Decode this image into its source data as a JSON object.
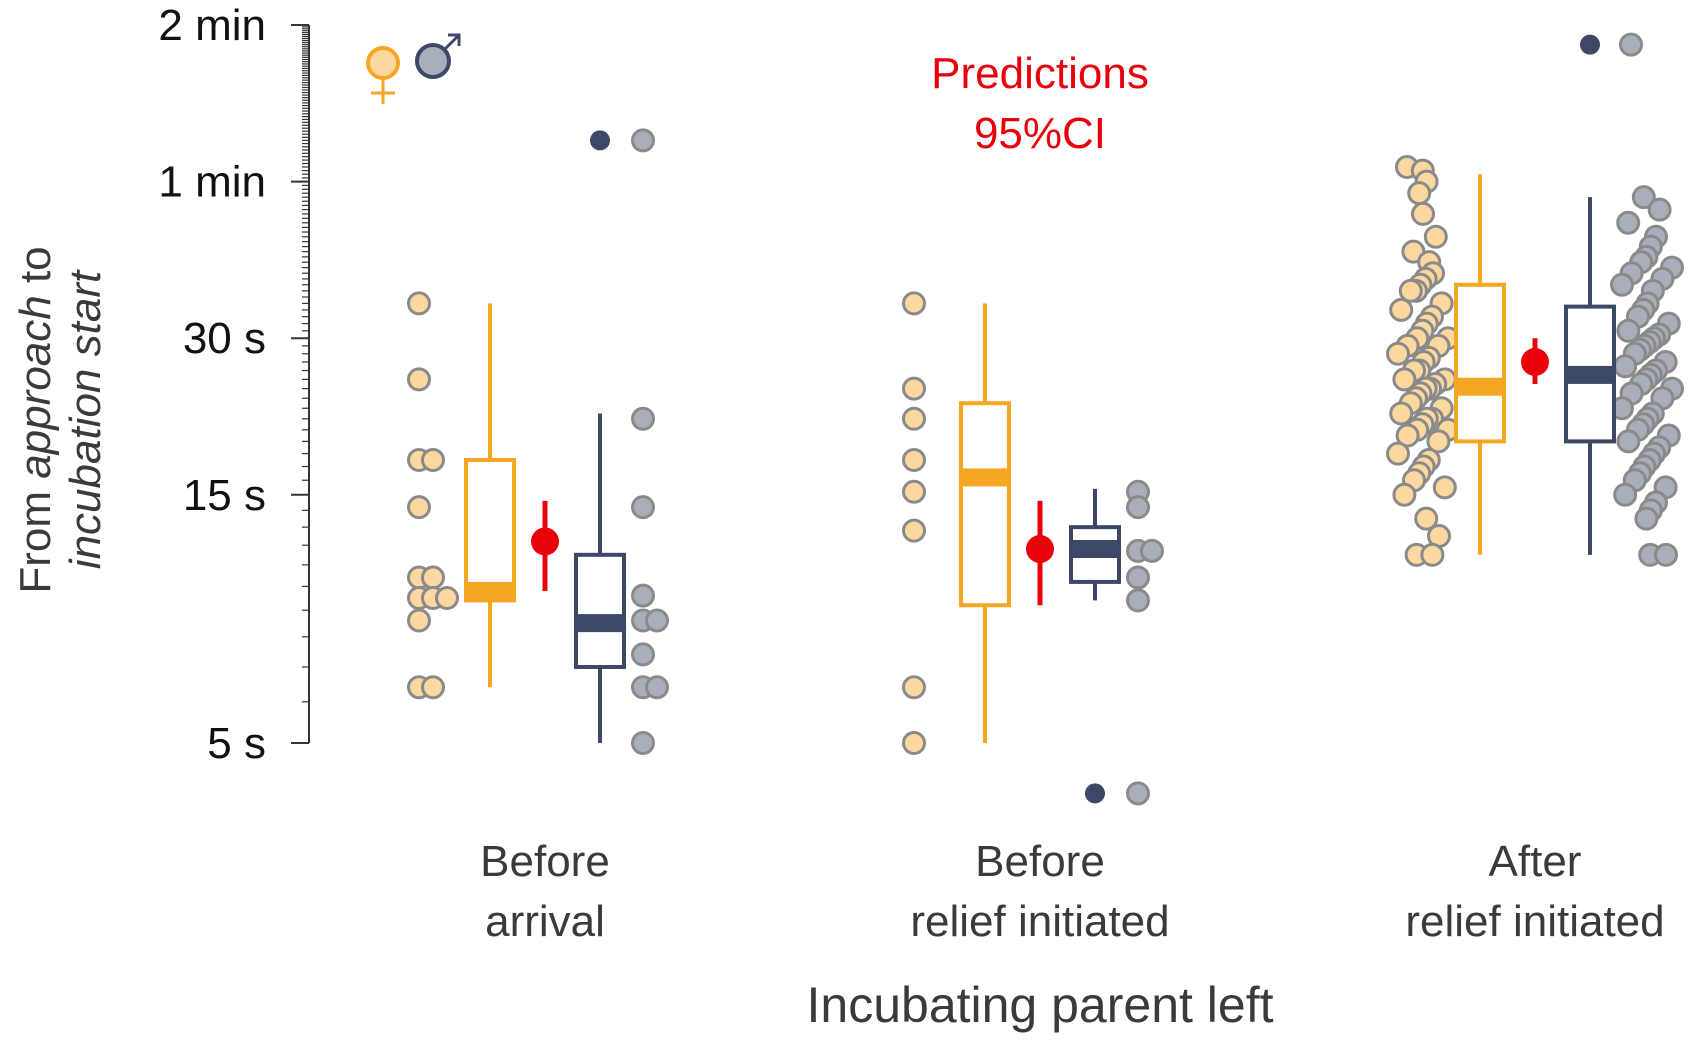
{
  "chart_data": {
    "type": "box",
    "xlabel": "Incubating parent left",
    "ylabel_parts": [
      "From ",
      "approach",
      " to",
      "incubation start"
    ],
    "yscale": "log",
    "ylim": [
      5,
      120
    ],
    "y_ticks": [
      {
        "value": 5,
        "label": "5 s"
      },
      {
        "value": 15,
        "label": "15 s"
      },
      {
        "value": 30,
        "label": "30 s"
      },
      {
        "value": 60,
        "label": "1 min"
      },
      {
        "value": 120,
        "label": "2 min"
      }
    ],
    "categories": [
      {
        "line1": "Before",
        "line2": "arrival"
      },
      {
        "line1": "Before",
        "line2": "relief initiated"
      },
      {
        "line1": "After",
        "line2": "relief initiated"
      }
    ],
    "legend": {
      "female_symbol": "♀",
      "male_symbol": "♂"
    },
    "annotation": {
      "line1": "Predictions",
      "line2": "95%CI"
    },
    "colors": {
      "female": "#f5a623",
      "female_point": "#fad8a0",
      "male": "#3d4866",
      "male_point": "#a9aebb",
      "point_edge": "#8a8a8a",
      "prediction": "#e8000b",
      "axis": "#333333",
      "text": "#3a3a3a"
    },
    "groups": [
      {
        "female_box": {
          "min": 6.4,
          "q1": 9.4,
          "median": 9.8,
          "q3": 17.5,
          "max": 35
        },
        "prediction": {
          "estimate": 12.2,
          "low": 9.8,
          "high": 14.6
        },
        "male_box": {
          "min": 5,
          "q1": 7.0,
          "median": 8.5,
          "q3": 11.5,
          "max": 21.5
        },
        "male_outliers": [
          72
        ],
        "female_points": [
          35,
          25,
          17.5,
          17.5,
          14.2,
          10.4,
          10.4,
          9.5,
          9.5,
          9.5,
          8.6,
          6.4,
          6.4
        ],
        "male_points": [
          72,
          21,
          14.2,
          9.6,
          8.6,
          8.6,
          7.4,
          6.4,
          6.4,
          5
        ]
      },
      {
        "female_box": {
          "min": 5,
          "q1": 9.2,
          "median": 16.2,
          "q3": 22.5,
          "max": 35
        },
        "prediction": {
          "estimate": 11.8,
          "low": 9.2,
          "high": 14.6
        },
        "male_box": {
          "min": 9.4,
          "q1": 10.2,
          "median": 11.8,
          "q3": 13.0,
          "max": 15.4
        },
        "male_outliers": [
          4
        ],
        "female_points": [
          35,
          24,
          21,
          17.5,
          15.2,
          12.8,
          6.4,
          5
        ],
        "male_points": [
          15.2,
          14.2,
          11.7,
          11.7,
          10.4,
          9.4,
          4
        ]
      },
      {
        "female_box": {
          "min": 11.5,
          "q1": 19.0,
          "median": 24.2,
          "q3": 38,
          "max": 62
        },
        "prediction": {
          "estimate": 27,
          "low": 24.5,
          "high": 30
        },
        "male_box": {
          "min": 11.5,
          "q1": 19.0,
          "median": 25.5,
          "q3": 34.5,
          "max": 56
        },
        "male_outliers": [
          110
        ],
        "female_points": [
          64,
          63,
          60,
          57,
          52,
          47,
          44,
          42,
          40,
          39,
          38,
          37,
          37,
          35,
          34,
          33,
          32,
          31,
          30,
          30,
          29,
          29,
          28,
          27.5,
          27,
          26,
          26,
          25,
          25,
          24.5,
          24,
          24,
          23.5,
          23,
          22.5,
          22,
          21.5,
          21,
          21,
          20.5,
          20,
          20,
          19.5,
          19,
          18,
          17.5,
          17,
          16.5,
          16,
          15.5,
          15,
          13.5,
          12.5,
          11.5,
          11.5
        ],
        "male_points": [
          110,
          56,
          53,
          50,
          47,
          45,
          43,
          42,
          41,
          40,
          39,
          38,
          37,
          35,
          34,
          33,
          32,
          31,
          30.5,
          30,
          29.5,
          29,
          28.5,
          28,
          27,
          26.5,
          26,
          25.5,
          25,
          24.5,
          24,
          23.5,
          23,
          22,
          21.5,
          21,
          20.5,
          20,
          19.5,
          19,
          18.5,
          18,
          17.5,
          17,
          16.5,
          16,
          15.5,
          15,
          14.5,
          14,
          13.5,
          11.5,
          11.5
        ]
      }
    ]
  }
}
